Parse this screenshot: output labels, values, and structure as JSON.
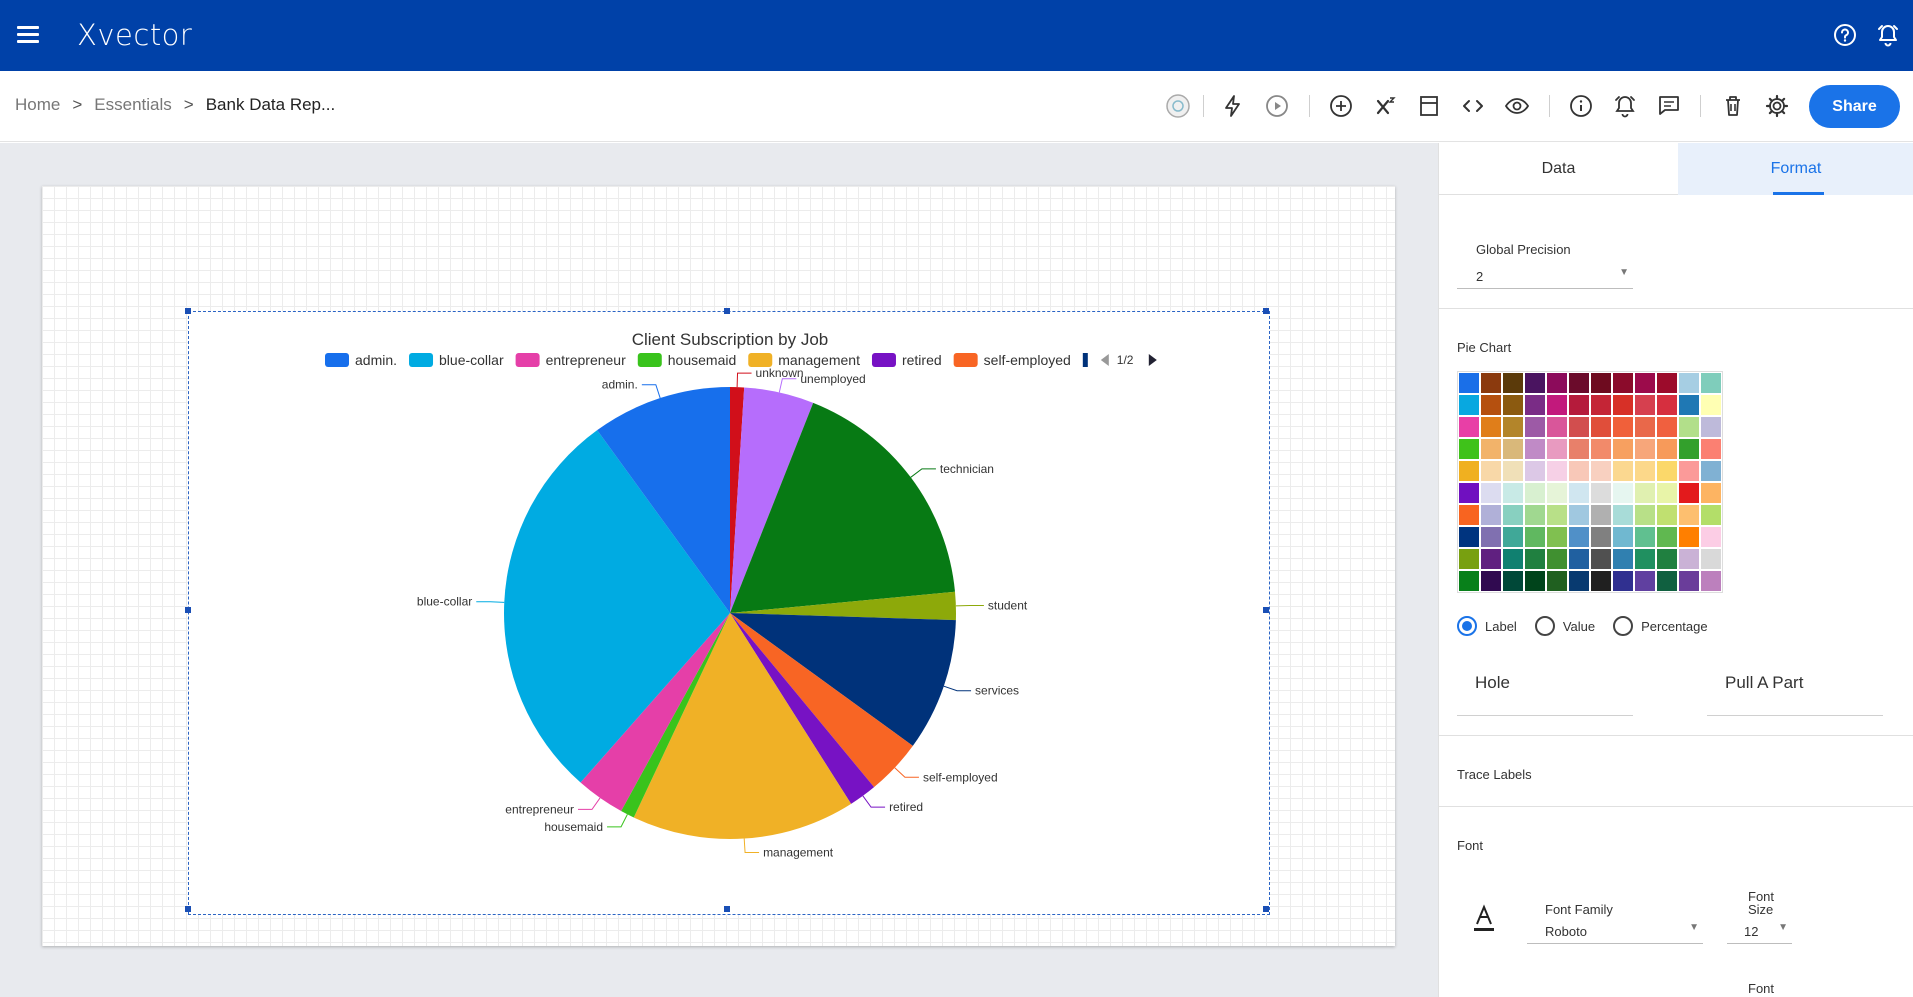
{
  "app": {
    "logo": "Xvector"
  },
  "breadcrumb": {
    "home": "Home",
    "essentials": "Essentials",
    "current": "Bank Data Rep...",
    "separator": ">"
  },
  "toolbar": {
    "share_label": "Share"
  },
  "panel": {
    "tabs": {
      "data": "Data",
      "format": "Format"
    },
    "global_precision": {
      "label": "Global Precision",
      "value": "2"
    },
    "pie_chart_label": "Pie Chart",
    "palette": [
      "#1a6fe8",
      "#8b3a0e",
      "#5b3a0a",
      "#4a1460",
      "#8c0b5b",
      "#6b0b2b",
      "#6e0b1f",
      "#8b0b2b",
      "#9c0b4b",
      "#9c0b2b",
      "#a6cee3",
      "#7fcdbb",
      "#08a8e0",
      "#b5500f",
      "#8b5a10",
      "#7a2c86",
      "#c2197c",
      "#b51b3b",
      "#c42536",
      "#d73027",
      "#d6404f",
      "#d62f3f",
      "#1f78b4",
      "#ffffb3",
      "#e83fa6",
      "#e07e1a",
      "#b3852a",
      "#9d5aa6",
      "#d9569a",
      "#d24e4e",
      "#e04e3a",
      "#f0603a",
      "#e9684a",
      "#f0603f",
      "#b2df8a",
      "#bebada",
      "#3fc21a",
      "#f2b36a",
      "#d9b87a",
      "#c08ac6",
      "#e89ac0",
      "#e8806a",
      "#f28a6a",
      "#f7a060",
      "#f7a67a",
      "#f79a5a",
      "#33a02c",
      "#fb8072",
      "#f0b020",
      "#f8d8a8",
      "#f0e0b8",
      "#dcc8e6",
      "#f6d0e6",
      "#f8c8b8",
      "#f8d0c0",
      "#fbd890",
      "#fcd88a",
      "#fbd86a",
      "#fb9a99",
      "#80b1d3",
      "#7010c0",
      "#dcdcf0",
      "#c8eae6",
      "#d8f0d0",
      "#e6f4d8",
      "#d0e6f0",
      "#dcdcdc",
      "#e6f6f0",
      "#e0f0b0",
      "#e8f4a8",
      "#e31a1c",
      "#fdb462",
      "#f86420",
      "#b0b0d8",
      "#88d0c0",
      "#a0d890",
      "#b8e088",
      "#a0c8e0",
      "#b0b0b0",
      "#a8dcd8",
      "#b8e088",
      "#c0e070",
      "#fdbf6f",
      "#b3de69",
      "#00347f",
      "#8070b0",
      "#40a898",
      "#60b860",
      "#80c050",
      "#5090c8",
      "#808080",
      "#70b8d0",
      "#60c090",
      "#60b850",
      "#ff7f00",
      "#fccde5",
      "#78a010",
      "#602080",
      "#108070",
      "#208040",
      "#409030",
      "#2060a0",
      "#505050",
      "#3080b0",
      "#209060",
      "#208040",
      "#cab2d6",
      "#d9d9d9",
      "#08801a",
      "#300a50",
      "#004838",
      "#00441b",
      "#206020",
      "#083a70",
      "#202020",
      "#303090",
      "#6040a0",
      "#106040",
      "#6a3d9a",
      "#bc80bd"
    ],
    "label_options": {
      "label": "Label",
      "value": "Value",
      "percentage": "Percentage",
      "selected": "Label"
    },
    "hole_label": "Hole",
    "pull_apart_label": "Pull A Part",
    "trace_labels_label": "Trace Labels",
    "font_label": "Font",
    "font_family": {
      "label": "Font Family",
      "value": "Roboto"
    },
    "font_size": {
      "label_line1": "Font",
      "label_line2": "Size",
      "value": "12"
    },
    "font_next_label": "Font"
  },
  "chart_data": {
    "type": "pie",
    "title": "Client Subscription by Job",
    "legend_page": "1/2",
    "legend_position": "top",
    "slices": [
      {
        "label": "unknown",
        "value": 1.0,
        "color": "#d10f1a"
      },
      {
        "label": "unemployed",
        "value": 5.0,
        "color": "#b66dfc"
      },
      {
        "label": "technician",
        "value": 17.5,
        "color": "#077a14"
      },
      {
        "label": "student",
        "value": 2.0,
        "color": "#8da90a"
      },
      {
        "label": "services",
        "value": 9.5,
        "color": "#00327a"
      },
      {
        "label": "self-employed",
        "value": 4.0,
        "color": "#f86524"
      },
      {
        "label": "retired",
        "value": 2.0,
        "color": "#7712c4"
      },
      {
        "label": "management",
        "value": 16.0,
        "color": "#f0b126"
      },
      {
        "label": "housemaid",
        "value": 1.0,
        "color": "#39c31c"
      },
      {
        "label": "entrepreneur",
        "value": 3.5,
        "color": "#e53fa8"
      },
      {
        "label": "blue-collar",
        "value": 28.5,
        "color": "#00abe2"
      },
      {
        "label": "admin.",
        "value": 10.0,
        "color": "#176fec"
      }
    ],
    "legend": [
      {
        "label": "admin.",
        "color": "#176fec"
      },
      {
        "label": "blue-collar",
        "color": "#00abe2"
      },
      {
        "label": "entrepreneur",
        "color": "#e53fa8"
      },
      {
        "label": "housemaid",
        "color": "#39c31c"
      },
      {
        "label": "management",
        "color": "#f0b126"
      },
      {
        "label": "retired",
        "color": "#7712c4"
      },
      {
        "label": "self-employed",
        "color": "#f86524"
      }
    ]
  }
}
